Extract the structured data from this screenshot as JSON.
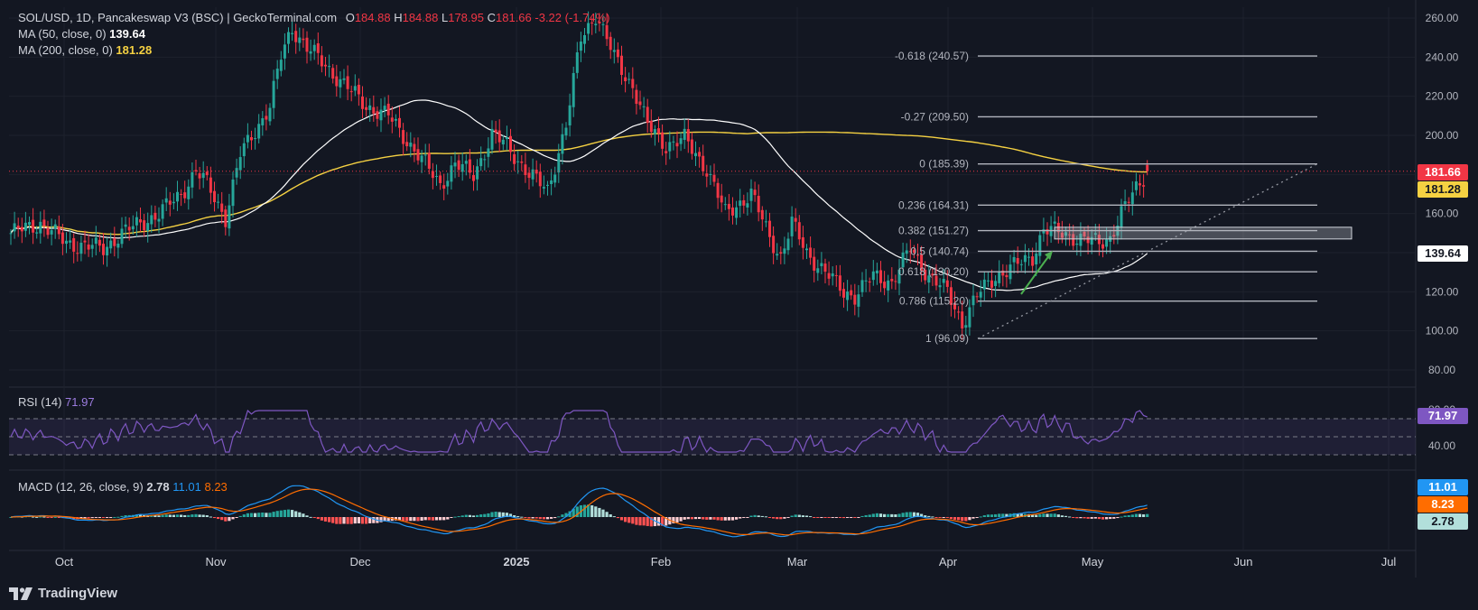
{
  "header": {
    "symbol": "SOL/USD, 1D, Pancakeswap V3 (BSC) | GeckoTerminal.com",
    "o_label": "O",
    "o_value": "184.88",
    "h_label": "H",
    "h_value": "184.88",
    "l_label": "L",
    "l_value": "178.95",
    "c_label": "C",
    "c_value": "181.66",
    "change": "-3.22 (-1.74%)"
  },
  "indicators": {
    "ma50_label": "MA (50, close, 0)",
    "ma50_value": "139.64",
    "ma200_label": "MA (200, close, 0)",
    "ma200_value": "181.28",
    "rsi_label": "RSI (14)",
    "rsi_value": "71.97",
    "macd_label": "MACD (12, 26, close, 9)",
    "macd_hist": "2.78",
    "macd_line": "11.01",
    "macd_signal": "8.23"
  },
  "price_badges": {
    "last": "181.66",
    "ma200": "181.28",
    "ma50": "139.64"
  },
  "rsi_badge": "71.97",
  "macd_badges": {
    "line": "11.01",
    "signal": "8.23",
    "hist": "2.78"
  },
  "colors": {
    "background": "#131722",
    "up": "#26a69a",
    "down": "#f23645",
    "ma50": "#ffffff",
    "ma200": "#f5d142",
    "rsi": "#7e57c2",
    "macd": "#2196f3",
    "signal": "#ff6d00",
    "fib": "#b2b5be"
  },
  "branding": {
    "logo_text": "TradingView",
    "logo_icon": "tradingview-logo-icon"
  },
  "chart_data": {
    "type": "candlestick",
    "title": "SOL/USD, 1D, Pancakeswap V3 (BSC) | GeckoTerminal.com",
    "x_ticks": [
      "Oct",
      "Nov",
      "Dec",
      "2025",
      "Feb",
      "Mar",
      "Apr",
      "May",
      "Jun",
      "Jul"
    ],
    "y_ticks": [
      80,
      100,
      120,
      140,
      160,
      180,
      200,
      220,
      240,
      260
    ],
    "ylim": [
      72,
      268
    ],
    "grid": true,
    "price_waypoints": [
      [
        0,
        150
      ],
      [
        8,
        155
      ],
      [
        15,
        145
      ],
      [
        25,
        142
      ],
      [
        30,
        150
      ],
      [
        40,
        160
      ],
      [
        46,
        170
      ],
      [
        50,
        182
      ],
      [
        53,
        175
      ],
      [
        58,
        158
      ],
      [
        62,
        190
      ],
      [
        70,
        215
      ],
      [
        73,
        240
      ],
      [
        76,
        255
      ],
      [
        80,
        245
      ],
      [
        88,
        230
      ],
      [
        96,
        215
      ],
      [
        102,
        210
      ],
      [
        110,
        190
      ],
      [
        116,
        175
      ],
      [
        120,
        185
      ],
      [
        125,
        180
      ],
      [
        130,
        200
      ],
      [
        134,
        195
      ],
      [
        140,
        180
      ],
      [
        145,
        172
      ],
      [
        150,
        205
      ],
      [
        154,
        250
      ],
      [
        158,
        262
      ],
      [
        163,
        240
      ],
      [
        168,
        225
      ],
      [
        172,
        205
      ],
      [
        177,
        195
      ],
      [
        182,
        198
      ],
      [
        188,
        183
      ],
      [
        193,
        160
      ],
      [
        200,
        170
      ],
      [
        205,
        148
      ],
      [
        208,
        138
      ],
      [
        211,
        155
      ],
      [
        215,
        140
      ],
      [
        220,
        130
      ],
      [
        225,
        120
      ],
      [
        228,
        118
      ],
      [
        233,
        128
      ],
      [
        238,
        125
      ],
      [
        243,
        142
      ],
      [
        248,
        128
      ],
      [
        253,
        120
      ],
      [
        257,
        104
      ],
      [
        261,
        118
      ],
      [
        266,
        128
      ],
      [
        271,
        133
      ],
      [
        276,
        138
      ],
      [
        279,
        152
      ],
      [
        284,
        150
      ],
      [
        289,
        147
      ],
      [
        294,
        145
      ],
      [
        297,
        148
      ],
      [
        300,
        160
      ],
      [
        304,
        173
      ],
      [
        307,
        181.66
      ]
    ],
    "ma50": {
      "name": "MA (50, close, 0)",
      "last": 139.64
    },
    "ma200": {
      "name": "MA (200, close, 0)",
      "last": 181.28
    },
    "fib_levels": [
      {
        "ratio": "-0.618",
        "price": 240.57,
        "label": "-0.618 (240.57)"
      },
      {
        "ratio": "-0.27",
        "price": 209.5,
        "label": "-0.27 (209.50)"
      },
      {
        "ratio": "0",
        "price": 185.39,
        "label": "0 (185.39)"
      },
      {
        "ratio": "0.236",
        "price": 164.31,
        "label": "0.236 (164.31)"
      },
      {
        "ratio": "0.382",
        "price": 151.27,
        "label": "0.382 (151.27)"
      },
      {
        "ratio": "0.5",
        "price": 140.74,
        "label": "0.5 (140.74)"
      },
      {
        "ratio": "0.618",
        "price": 130.2,
        "label": "0.618 (130.20)"
      },
      {
        "ratio": "0.786",
        "price": 115.2,
        "label": "0.786 (115.20)"
      },
      {
        "ratio": "1",
        "price": 96.09,
        "label": "1 (96.09)"
      }
    ],
    "zone": {
      "top": 153,
      "bottom": 147
    },
    "rsi": {
      "name": "RSI (14)",
      "last": 71.97,
      "upper": 70,
      "middle": 50,
      "lower": 30,
      "ticks": [
        40,
        80
      ]
    },
    "macd": {
      "name": "MACD (12, 26, close, 9)",
      "line": 11.01,
      "signal": 8.23,
      "hist": 2.78
    }
  }
}
